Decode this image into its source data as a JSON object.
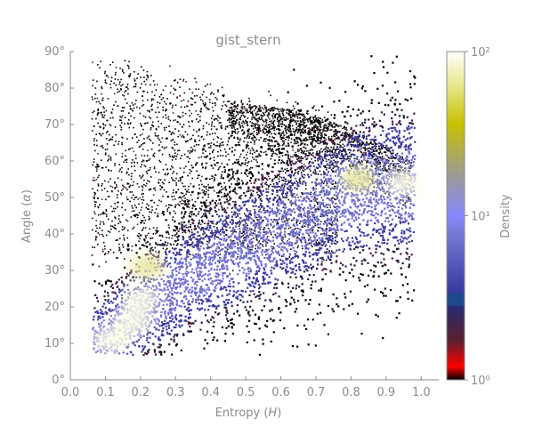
{
  "chart_data": {
    "type": "heatmap",
    "title": "gist_stern",
    "xlabel": "Entropy (H)",
    "ylabel": "Angle (α)",
    "xlim": [
      0.0,
      1.05
    ],
    "ylim": [
      0,
      90
    ],
    "x_ticks": [
      "0.0",
      "0.1",
      "0.2",
      "0.3",
      "0.4",
      "0.5",
      "0.6",
      "0.7",
      "0.8",
      "0.9",
      "1.0"
    ],
    "y_ticks": [
      "0°",
      "10°",
      "20°",
      "30°",
      "40°",
      "50°",
      "60°",
      "70°",
      "80°",
      "90°"
    ],
    "grid": false,
    "colorbar": {
      "label": "Density",
      "scale": "log",
      "range": [
        1,
        100
      ],
      "tick_labels": [
        "10⁰",
        "10¹",
        "10²"
      ],
      "colormap": "gist_stern"
    },
    "density_regions": [
      {
        "H": 0.12,
        "alpha": 11,
        "density": 100
      },
      {
        "H": 0.18,
        "alpha": 16,
        "density": 80
      },
      {
        "H": 0.2,
        "alpha": 22,
        "density": 70
      },
      {
        "H": 0.22,
        "alpha": 31,
        "density": 40
      },
      {
        "H": 0.82,
        "alpha": 55,
        "density": 45
      },
      {
        "H": 0.95,
        "alpha": 54,
        "density": 70
      }
    ]
  }
}
